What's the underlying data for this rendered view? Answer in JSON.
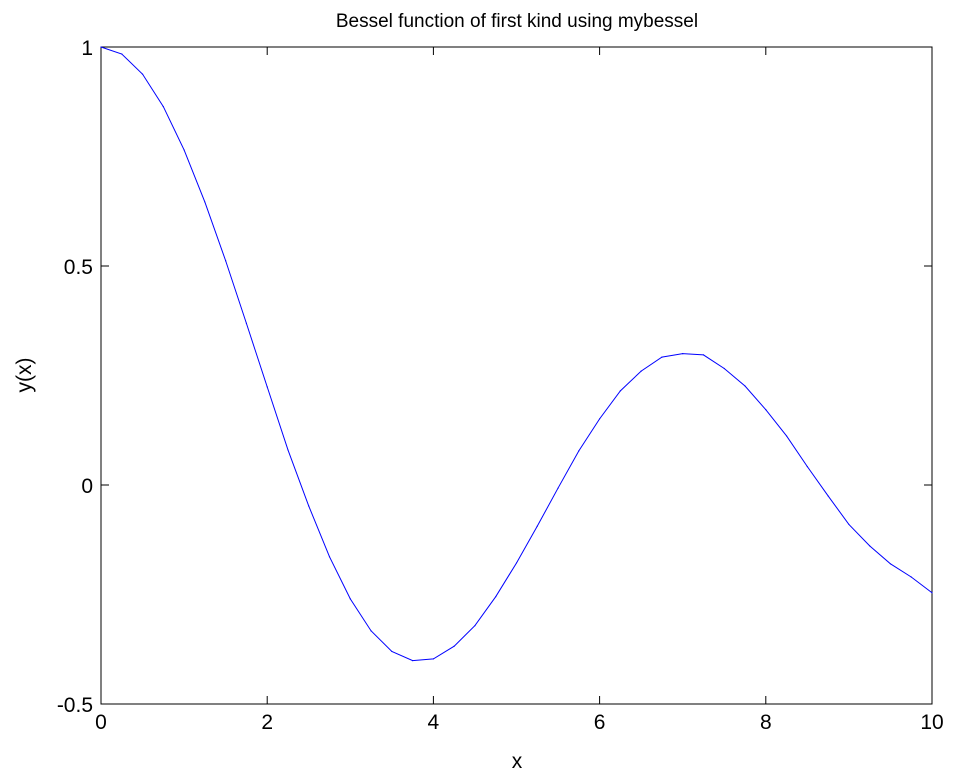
{
  "chart_data": {
    "type": "line",
    "title": "Bessel function of first kind using mybessel",
    "xlabel": "x",
    "ylabel": "y(x)",
    "xlim": [
      0,
      10
    ],
    "ylim": [
      -0.5,
      1
    ],
    "xticks": [
      0,
      2,
      4,
      6,
      8,
      10
    ],
    "xtick_labels": [
      "0",
      "2",
      "4",
      "6",
      "8",
      "10"
    ],
    "yticks": [
      -0.5,
      0,
      0.5,
      1
    ],
    "ytick_labels": [
      "-0.5",
      "0",
      "0.5",
      "1"
    ],
    "grid": false,
    "legend": "none",
    "series": [
      {
        "color": "#0000ff",
        "x": [
          0,
          0.25,
          0.5,
          0.75,
          1,
          1.25,
          1.5,
          1.75,
          2,
          2.25,
          2.5,
          2.75,
          3,
          3.25,
          3.5,
          3.75,
          4,
          4.25,
          4.5,
          4.75,
          5,
          5.25,
          5.5,
          5.75,
          6,
          6.25,
          6.5,
          6.75,
          7,
          7.25,
          7.5,
          7.75,
          8,
          8.25,
          8.5,
          8.75,
          9,
          9.25,
          9.5,
          9.75,
          10
        ],
        "y": [
          1,
          0.984,
          0.938,
          0.864,
          0.765,
          0.646,
          0.512,
          0.369,
          0.224,
          0.08,
          -0.048,
          -0.164,
          -0.26,
          -0.333,
          -0.38,
          -0.401,
          -0.397,
          -0.368,
          -0.321,
          -0.255,
          -0.178,
          -0.094,
          -0.007,
          0.078,
          0.151,
          0.215,
          0.26,
          0.292,
          0.3,
          0.297,
          0.266,
          0.226,
          0.172,
          0.112,
          0.042,
          -0.025,
          -0.09,
          -0.139,
          -0.18,
          -0.21,
          -0.246
        ]
      }
    ]
  }
}
